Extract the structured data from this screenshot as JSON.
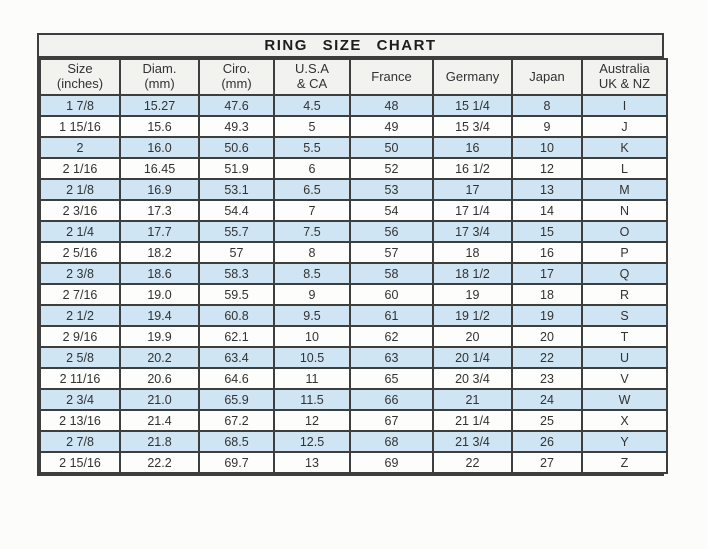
{
  "title": "RING SIZE CHART",
  "colors": {
    "row_alt": "#cfe5f4",
    "row_plain": "#fdfdfc",
    "header_bg": "#f2f2ef",
    "border": "#3e3e3e",
    "text": "#323232",
    "page_bg": "#fcfcfb"
  },
  "chart_data": {
    "type": "table",
    "title": "RING SIZE CHART",
    "legend_position": "none",
    "grid": true,
    "striping": "alternating rows highlighted light blue, starting with the first data row",
    "columns": [
      {
        "label": "Size (inches)",
        "lines": [
          "Size",
          "(inches)"
        ]
      },
      {
        "label": "Diam. (mm)",
        "lines": [
          "Diam.",
          "(mm)"
        ]
      },
      {
        "label": "Ciro. (mm)",
        "lines": [
          "Ciro.",
          "(mm)"
        ]
      },
      {
        "label": "U.S.A & CA",
        "lines": [
          "U.S.A",
          "& CA"
        ]
      },
      {
        "label": "France",
        "lines": [
          "France"
        ]
      },
      {
        "label": "Germany",
        "lines": [
          "Germany"
        ]
      },
      {
        "label": "Japan",
        "lines": [
          "Japan"
        ]
      },
      {
        "label": "Australia UK & NZ",
        "lines": [
          "Australia",
          "UK & NZ"
        ]
      }
    ],
    "rows": [
      [
        "1 7/8",
        "15.27",
        "47.6",
        "4.5",
        "48",
        "15 1/4",
        "8",
        "I"
      ],
      [
        "1 15/16",
        "15.6",
        "49.3",
        "5",
        "49",
        "15 3/4",
        "9",
        "J"
      ],
      [
        "2",
        "16.0",
        "50.6",
        "5.5",
        "50",
        "16",
        "10",
        "K"
      ],
      [
        "2 1/16",
        "16.45",
        "51.9",
        "6",
        "52",
        "16 1/2",
        "12",
        "L"
      ],
      [
        "2 1/8",
        "16.9",
        "53.1",
        "6.5",
        "53",
        "17",
        "13",
        "M"
      ],
      [
        "2 3/16",
        "17.3",
        "54.4",
        "7",
        "54",
        "17 1/4",
        "14",
        "N"
      ],
      [
        "2 1/4",
        "17.7",
        "55.7",
        "7.5",
        "56",
        "17 3/4",
        "15",
        "O"
      ],
      [
        "2 5/16",
        "18.2",
        "57",
        "8",
        "57",
        "18",
        "16",
        "P"
      ],
      [
        "2 3/8",
        "18.6",
        "58.3",
        "8.5",
        "58",
        "18 1/2",
        "17",
        "Q"
      ],
      [
        "2 7/16",
        "19.0",
        "59.5",
        "9",
        "60",
        "19",
        "18",
        "R"
      ],
      [
        "2 1/2",
        "19.4",
        "60.8",
        "9.5",
        "61",
        "19 1/2",
        "19",
        "S"
      ],
      [
        "2 9/16",
        "19.9",
        "62.1",
        "10",
        "62",
        "20",
        "20",
        "T"
      ],
      [
        "2 5/8",
        "20.2",
        "63.4",
        "10.5",
        "63",
        "20 1/4",
        "22",
        "U"
      ],
      [
        "2 11/16",
        "20.6",
        "64.6",
        "11",
        "65",
        "20 3/4",
        "23",
        "V"
      ],
      [
        "2 3/4",
        "21.0",
        "65.9",
        "11.5",
        "66",
        "21",
        "24",
        "W"
      ],
      [
        "2 13/16",
        "21.4",
        "67.2",
        "12",
        "67",
        "21 1/4",
        "25",
        "X"
      ],
      [
        "2 7/8",
        "21.8",
        "68.5",
        "12.5",
        "68",
        "21 3/4",
        "26",
        "Y"
      ],
      [
        "2 15/16",
        "22.2",
        "69.7",
        "13",
        "69",
        "22",
        "27",
        "Z"
      ]
    ]
  }
}
